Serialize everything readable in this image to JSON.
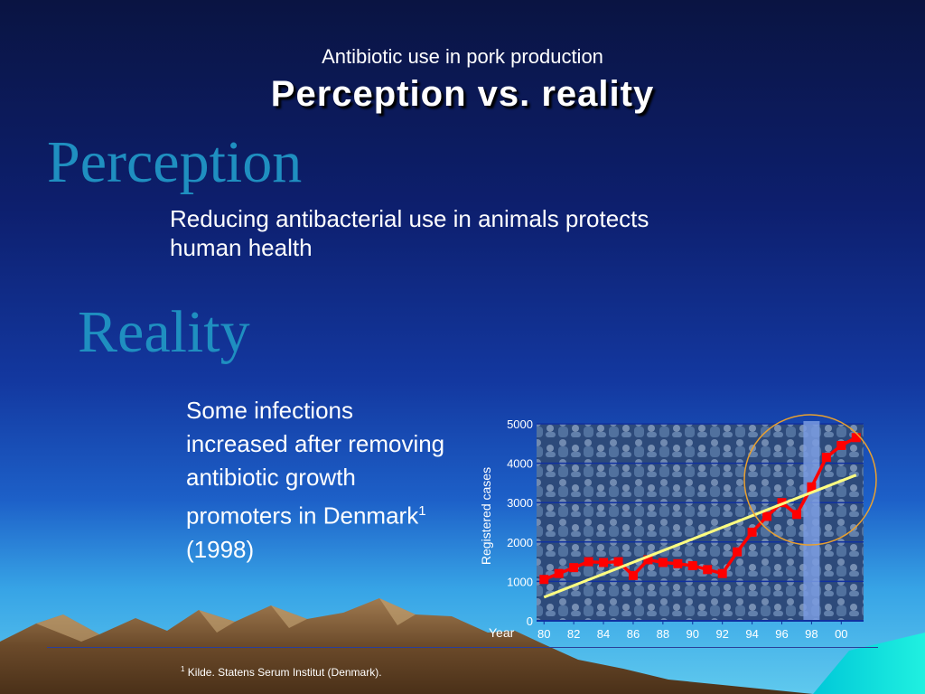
{
  "slide": {
    "subtitle": "Antibiotic use in pork production",
    "title": "Perception vs. reality",
    "perception_heading": "Perception",
    "perception_text": "Reducing antibacterial use in animals protects human health",
    "reality_heading": "Reality",
    "reality_text_main": "Some infections increased after removing antibiotic growth promoters in Denmark",
    "reality_text_sup": "1",
    "reality_text_tail": " (1998)",
    "footnote_sup": "1",
    "footnote_text": " Kilde. Statens Serum Institut (Denmark)."
  },
  "chart_data": {
    "type": "line",
    "title": "",
    "xlabel": "Year",
    "ylabel": "Registered cases",
    "ylim": [
      0,
      5000
    ],
    "xlim": [
      1979.5,
      2001.5
    ],
    "yticks": [
      0,
      1000,
      2000,
      3000,
      4000,
      5000
    ],
    "xticks": [
      {
        "value": 1980,
        "label": "80"
      },
      {
        "value": 1982,
        "label": "82"
      },
      {
        "value": 1984,
        "label": "84"
      },
      {
        "value": 1986,
        "label": "86"
      },
      {
        "value": 1988,
        "label": "88"
      },
      {
        "value": 1990,
        "label": "90"
      },
      {
        "value": 1992,
        "label": "92"
      },
      {
        "value": 1994,
        "label": "94"
      },
      {
        "value": 1996,
        "label": "96"
      },
      {
        "value": 1998,
        "label": "98"
      },
      {
        "value": 2000,
        "label": "00"
      }
    ],
    "grid": true,
    "highlight_year": 1998,
    "series": [
      {
        "x": [
          1980,
          1981,
          1982,
          1983,
          1984,
          1985,
          1986,
          1987,
          1988,
          1989,
          1990,
          1991,
          1992,
          1993,
          1994,
          1995,
          1996,
          1997,
          1998,
          1999,
          2000,
          2001
        ],
        "y": [
          1050,
          1200,
          1350,
          1500,
          1480,
          1500,
          1150,
          1550,
          1480,
          1450,
          1400,
          1300,
          1200,
          1750,
          2250,
          2650,
          3000,
          2700,
          3400,
          4150,
          4450,
          4650
        ],
        "color": "#ff0000"
      },
      {
        "type": "trend",
        "x": [
          1980,
          2001
        ],
        "y": [
          600,
          3700
        ],
        "color": "#ffff80"
      }
    ],
    "colors": {
      "plot_bg": "#3a5a8c",
      "grid": "#1030a0",
      "highlight": "#7a9be0",
      "circle": "#e8a030",
      "text": "#ffffff"
    }
  }
}
